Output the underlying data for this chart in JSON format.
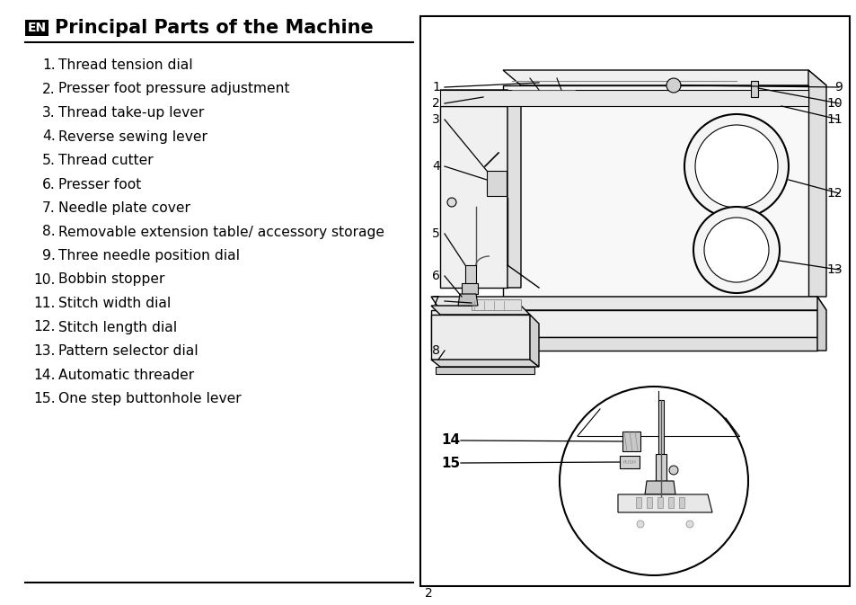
{
  "title": "Principal Parts of the Machine",
  "title_badge": "EN",
  "bg_color": "#ffffff",
  "text_color": "#000000",
  "items": [
    [
      "1.",
      "Thread tension dial"
    ],
    [
      "2.",
      "Presser foot pressure adjustment"
    ],
    [
      "3.",
      "Thread take-up lever"
    ],
    [
      "4.",
      "Reverse sewing lever"
    ],
    [
      "5.",
      "Thread cutter"
    ],
    [
      "6.",
      "Presser foot"
    ],
    [
      "7.",
      "Needle plate cover"
    ],
    [
      "8.",
      "Removable extension table/ accessory storage"
    ],
    [
      "9.",
      "Three needle position dial"
    ],
    [
      "10.",
      "Bobbin stopper"
    ],
    [
      "11.",
      "Stitch width dial"
    ],
    [
      "12.",
      "Stitch length dial"
    ],
    [
      "13.",
      "Pattern selector dial"
    ],
    [
      "14.",
      "Automatic threader"
    ],
    [
      "15.",
      "One step buttonhole lever"
    ]
  ],
  "page_number": "2",
  "fig_width": 9.54,
  "fig_height": 6.73,
  "dpi": 100
}
